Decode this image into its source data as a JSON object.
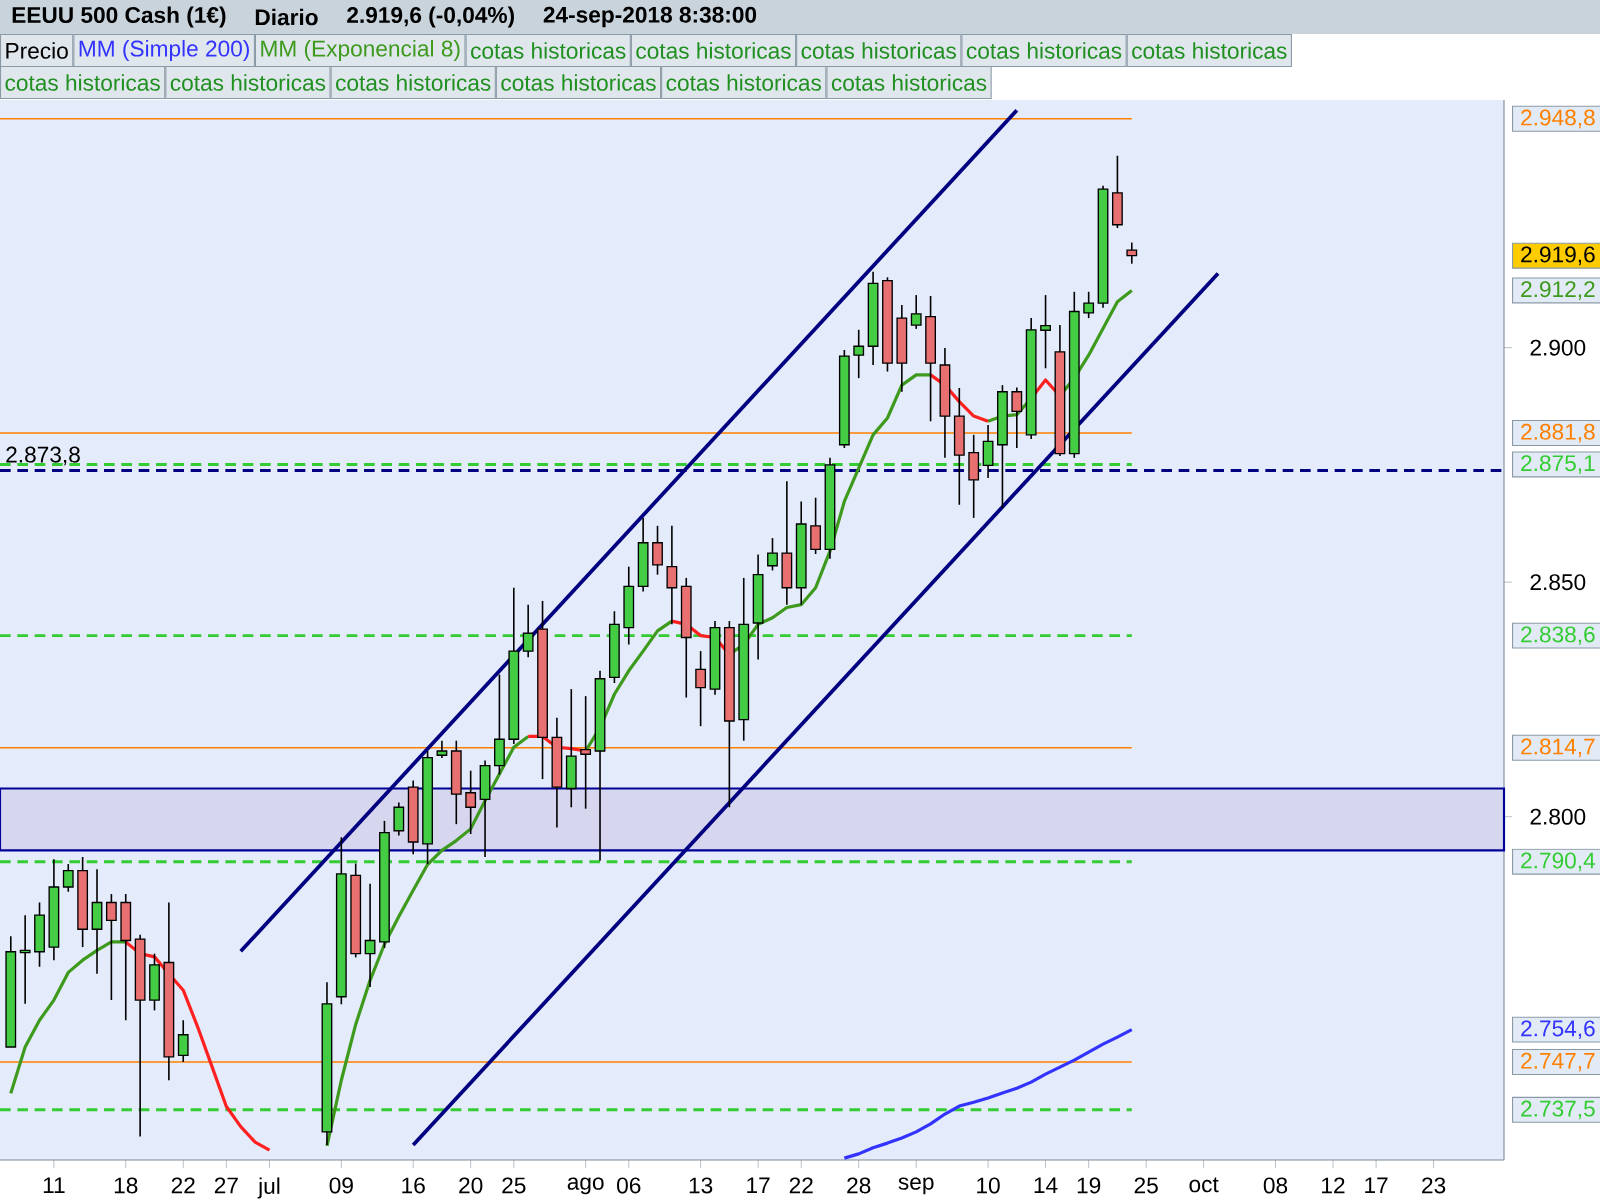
{
  "chart_data": {
    "type": "candlestick",
    "title": "EEUU 500 Cash (1€)",
    "subtitle": "Diario",
    "categories": [
      null,
      null,
      null,
      "11",
      null,
      null,
      null,
      null,
      "18",
      null,
      null,
      null,
      "22",
      null,
      null,
      "27",
      null,
      null,
      "jul",
      null,
      null,
      null,
      null,
      "09",
      null,
      null,
      null,
      null,
      "16",
      null,
      null,
      null,
      "20",
      null,
      null,
      "25",
      null,
      null,
      null,
      null,
      "ago",
      null,
      null,
      "06",
      null,
      null,
      null,
      null,
      "13",
      null,
      null,
      null,
      "17",
      null,
      null,
      "22",
      null,
      null,
      null,
      "28",
      null,
      null,
      null,
      "sep",
      null,
      null,
      null,
      null,
      "10",
      null,
      null,
      null,
      "14",
      null,
      null,
      "19",
      null,
      null,
      null,
      "25",
      null,
      null,
      null,
      "oct",
      null,
      null,
      null,
      null,
      "08",
      null,
      null,
      null,
      "12",
      null,
      null,
      "17",
      null,
      null,
      null,
      "23",
      null,
      null,
      null,
      null
    ],
    "series": [
      {
        "name": "Precio",
        "type": "candlestick",
        "ohlc": [
          [
            2750.9,
            2774.5,
            2750.9,
            2771.2
          ],
          [
            2771.0,
            2779.0,
            2760.1,
            2771.5
          ],
          [
            2771.2,
            2781.7,
            2768.0,
            2779.0
          ],
          [
            2772.2,
            2790.9,
            2769.4,
            2785.0
          ],
          [
            2785.0,
            2789.9,
            2784.0,
            2788.5
          ],
          [
            2788.5,
            2791.4,
            2772.2,
            2776.0
          ],
          [
            2776.0,
            2788.8,
            2766.5,
            2781.7
          ],
          [
            2781.7,
            2783.5,
            2760.9,
            2777.9
          ],
          [
            2781.7,
            2783.5,
            2756.6,
            2773.6
          ],
          [
            2773.9,
            2774.8,
            2731.8,
            2760.9
          ],
          [
            2760.9,
            2770.8,
            2758.7,
            2768.4
          ],
          [
            2768.9,
            2781.7,
            2743.8,
            2748.8
          ],
          [
            2749.1,
            2756.6,
            2747.7,
            2753.5
          ],
          null,
          null,
          null,
          null,
          null,
          null,
          null,
          null,
          null,
          [
            2732.8,
            2764.7,
            2730.0,
            2760.1
          ],
          [
            2761.6,
            2795.6,
            2760.0,
            2787.8
          ],
          [
            2787.5,
            2790.0,
            2770.0,
            2770.8
          ],
          [
            2770.8,
            2785.7,
            2763.7,
            2773.6
          ],
          [
            2773.3,
            2799.1,
            2772.0,
            2796.6
          ],
          [
            2797.0,
            2803.0,
            2796.0,
            2802.0
          ],
          [
            2806.3,
            2807.7,
            2792.0,
            2794.6
          ],
          [
            2794.2,
            2814.0,
            2789.9,
            2812.6
          ],
          [
            2813.1,
            2816.2,
            2812.5,
            2814.0
          ],
          [
            2814.0,
            2816.2,
            2798.4,
            2804.8
          ],
          [
            2805.1,
            2809.8,
            2796.3,
            2802.0
          ],
          [
            2803.7,
            2812.0,
            2791.4,
            2810.9
          ],
          [
            2810.9,
            2830.3,
            2809.0,
            2816.5
          ],
          [
            2816.5,
            2848.8,
            2815.5,
            2835.3
          ],
          [
            2835.3,
            2845.2,
            2834.0,
            2839.1
          ],
          [
            2840.0,
            2846.0,
            2808.0,
            2816.9
          ],
          [
            2816.9,
            2821.1,
            2797.7,
            2806.3
          ],
          [
            2806.0,
            2827.2,
            2802.0,
            2812.9
          ],
          [
            2814.3,
            2825.7,
            2801.7,
            2813.3
          ],
          [
            2814.0,
            2831.1,
            2790.6,
            2829.4
          ],
          [
            2829.7,
            2843.8,
            2828.5,
            2841.0
          ],
          [
            2840.3,
            2853.3,
            2836.7,
            2849.1
          ],
          [
            2849.1,
            2863.7,
            2848.0,
            2858.4
          ],
          [
            2858.4,
            2862.0,
            2851.6,
            2853.7
          ],
          [
            2853.3,
            2862.0,
            2841.0,
            2848.8
          ],
          [
            2849.1,
            2850.9,
            2825.4,
            2838.2
          ],
          [
            2831.4,
            2835.3,
            2819.3,
            2827.5
          ],
          [
            2827.2,
            2841.7,
            2826.0,
            2840.3
          ],
          [
            2840.3,
            2841.7,
            2802.0,
            2820.4
          ],
          [
            2820.7,
            2850.9,
            2816.2,
            2841.0
          ],
          [
            2841.3,
            2855.9,
            2833.5,
            2851.6
          ],
          [
            2853.5,
            2859.4,
            2852.5,
            2856.2
          ],
          [
            2856.2,
            2871.5,
            2845.2,
            2848.8
          ],
          [
            2848.8,
            2867.2,
            2845.2,
            2862.4
          ],
          [
            2862.0,
            2868.0,
            2856.0,
            2857.0
          ],
          [
            2857.0,
            2876.5,
            2855.0,
            2875.0
          ],
          [
            2879.3,
            2899.5,
            2878.6,
            2898.2
          ],
          [
            2898.4,
            2903.8,
            2893.5,
            2900.3
          ],
          [
            2900.3,
            2916.2,
            2896.3,
            2913.7
          ],
          [
            2914.3,
            2915.0,
            2894.9,
            2896.7
          ],
          [
            2906.3,
            2909.1,
            2890.6,
            2896.7
          ],
          [
            2904.8,
            2911.2,
            2904.0,
            2907.2
          ],
          [
            2906.6,
            2911.0,
            2884.3,
            2896.7
          ],
          [
            2896.3,
            2899.9,
            2876.5,
            2885.4
          ],
          [
            2885.4,
            2891.4,
            2866.5,
            2877.1
          ],
          [
            2877.6,
            2881.4,
            2863.7,
            2871.8
          ],
          [
            2874.9,
            2883.5,
            2872.2,
            2880.0
          ],
          [
            2879.3,
            2892.0,
            2865.8,
            2890.6
          ],
          [
            2890.6,
            2891.5,
            2878.6,
            2886.4
          ],
          [
            2881.4,
            2906.3,
            2880.5,
            2903.8
          ],
          [
            2903.7,
            2911.2,
            2895.6,
            2904.7
          ],
          [
            2899.1,
            2904.8,
            2876.9,
            2877.4
          ],
          [
            2877.4,
            2911.9,
            2876.5,
            2907.7
          ],
          [
            2907.4,
            2911.9,
            2906.3,
            2909.5
          ],
          [
            2909.5,
            2934.5,
            2908.5,
            2933.8
          ],
          [
            2933.0,
            2940.9,
            2925.5,
            2926.2
          ],
          [
            2920.8,
            2922.4,
            2917.9,
            2919.6
          ],
          null,
          null,
          null,
          null,
          null,
          null,
          null,
          null,
          null,
          null,
          null,
          null,
          null,
          null,
          null,
          null,
          null,
          null,
          null,
          null,
          null,
          null,
          null,
          null,
          null
        ]
      },
      {
        "name": "MM (Simple 200)",
        "type": "line",
        "color": "#3333ff",
        "values": [
          null,
          null,
          null,
          null,
          null,
          null,
          null,
          null,
          null,
          null,
          null,
          null,
          null,
          null,
          null,
          null,
          null,
          null,
          null,
          null,
          null,
          null,
          null,
          null,
          null,
          null,
          null,
          null,
          null,
          null,
          null,
          null,
          null,
          null,
          null,
          null,
          null,
          null,
          null,
          null,
          null,
          null,
          null,
          null,
          null,
          null,
          null,
          null,
          null,
          null,
          null,
          null,
          null,
          null,
          null,
          null,
          null,
          null,
          2727.2,
          2728.1,
          2729.4,
          2730.4,
          2731.5,
          2732.8,
          2734.5,
          2736.6,
          2738.3,
          2739.1,
          2740.0,
          2741.1,
          2742.1,
          2743.4,
          2745.1,
          2746.6,
          2748.1,
          2749.8,
          2751.5,
          2753.0,
          2754.6,
          null,
          null,
          null,
          null,
          null,
          null,
          null,
          null,
          null,
          null,
          null,
          null,
          null,
          null,
          null,
          null,
          null,
          null,
          null,
          null,
          null,
          null,
          null,
          null,
          null
        ]
      },
      {
        "name": "MM (Exponencial 8)",
        "type": "line",
        "color": "#3d9a1c",
        "values": [
          2741.0,
          2750.9,
          2756.6,
          2760.9,
          2766.8,
          2769.4,
          2771.5,
          2773.3,
          2773.3,
          null,
          null,
          null,
          null,
          null,
          null,
          null,
          null,
          null,
          null,
          null,
          null,
          null,
          2729.8,
          2743.8,
          2755.7,
          2765.1,
          2772.8,
          2778.7,
          2784.3,
          2789.8,
          2792.8,
          2794.9,
          2797.4,
          2803.4,
          2809.1,
          2814.8,
          2817.1,
          null,
          null,
          null,
          2814.0,
          2819.0,
          2826.1,
          2831.1,
          2835.3,
          2839.6,
          2841.7,
          null,
          null,
          null,
          2834.6,
          2836.7,
          2841.0,
          2842.4,
          2844.6,
          2845.2,
          2848.8,
          2856.6,
          2867.2,
          2874.3,
          2881.4,
          2885.0,
          2892.0,
          2894.2,
          2894.2,
          null,
          null,
          null,
          2884.3,
          2885.4,
          2885.7,
          2889.2,
          null,
          2889.7,
          2893.5,
          2898.4,
          2904.1,
          2909.8,
          2912.2,
          null,
          null,
          null,
          null,
          null,
          null,
          null,
          null,
          null,
          null,
          null,
          null,
          null,
          null,
          null,
          null,
          null,
          null,
          null,
          null,
          null,
          null,
          null,
          null,
          null
        ]
      },
      {
        "type": "line",
        "color": "#ff2020",
        "values": [
          null,
          null,
          null,
          null,
          null,
          null,
          null,
          null,
          2773.3,
          2770.8,
          2770.1,
          2766.5,
          2763.0,
          2755.2,
          2746.7,
          2738.2,
          2733.9,
          2730.6,
          2728.9,
          null,
          null,
          null,
          null,
          null,
          null,
          null,
          null,
          null,
          null,
          null,
          null,
          null,
          null,
          null,
          null,
          null,
          2817.1,
          2817.1,
          2814.8,
          2814.5,
          2814.0,
          null,
          null,
          null,
          null,
          null,
          2841.7,
          2841.0,
          2838.6,
          2838.2,
          2834.6,
          null,
          null,
          null,
          null,
          null,
          null,
          null,
          null,
          null,
          null,
          null,
          null,
          null,
          2894.2,
          2892.0,
          2888.5,
          2885.4,
          2884.3,
          null,
          null,
          2889.2,
          2893.1,
          2889.7,
          null,
          null,
          null,
          null,
          null,
          null,
          null,
          null,
          null,
          null,
          null,
          null,
          null,
          null,
          null,
          null,
          null,
          null,
          null,
          null,
          null,
          null,
          null,
          null,
          null,
          null,
          null,
          null,
          null,
          null
        ]
      },
      {
        "type": "line",
        "color": "#000080",
        "values": [
          null,
          null,
          null,
          null,
          null,
          null,
          null,
          null,
          null,
          null,
          null,
          null,
          null,
          null,
          null,
          null,
          2771.3,
          null,
          null,
          null,
          null,
          null,
          null,
          null,
          null,
          null,
          null,
          null,
          null,
          null,
          null,
          null,
          null,
          null,
          null,
          null,
          null,
          null,
          null,
          null,
          null,
          null,
          null,
          null,
          null,
          null,
          null,
          null,
          null,
          null,
          null,
          null,
          null,
          null,
          null,
          null,
          null,
          null,
          null,
          null,
          null,
          null,
          null,
          null,
          null,
          null,
          null,
          null,
          null,
          null,
          2950.6,
          null,
          null,
          null,
          null,
          null,
          null,
          null,
          null,
          null,
          null,
          null,
          null,
          null,
          null,
          null,
          null,
          null,
          null,
          null,
          null,
          null,
          null,
          null,
          null,
          null,
          null,
          null,
          null,
          null,
          null,
          null,
          null,
          null
        ]
      },
      {
        "type": "line",
        "color": "#000080",
        "values": [
          null,
          null,
          null,
          null,
          null,
          null,
          null,
          null,
          null,
          null,
          null,
          null,
          null,
          null,
          null,
          null,
          null,
          null,
          null,
          null,
          null,
          null,
          null,
          null,
          null,
          null,
          null,
          null,
          2730.0,
          null,
          null,
          null,
          null,
          null,
          null,
          null,
          null,
          null,
          null,
          null,
          null,
          null,
          null,
          null,
          null,
          null,
          null,
          null,
          null,
          null,
          null,
          null,
          null,
          null,
          null,
          null,
          null,
          null,
          null,
          null,
          null,
          null,
          null,
          null,
          null,
          null,
          null,
          null,
          null,
          null,
          null,
          null,
          null,
          null,
          null,
          null,
          null,
          null,
          null,
          null,
          null,
          null,
          null,
          null,
          2915.8,
          null,
          null,
          null,
          null,
          null,
          null,
          null,
          null,
          null,
          null,
          null,
          null,
          null,
          null,
          null,
          null,
          null,
          null,
          null
        ]
      }
    ],
    "ylim": [
      2726.8,
      2952.8
    ],
    "yticks": [
      {
        "value": 2800,
        "label": "2.800"
      },
      {
        "value": 2850,
        "label": "2.850"
      },
      {
        "value": 2900,
        "label": "2.900"
      }
    ],
    "ref_lines": [
      {
        "axis": "y",
        "value": 2948.8,
        "label": "2.948,8",
        "color": "#ff8000"
      },
      {
        "axis": "y",
        "value": 2881.8,
        "label": "2.881,8",
        "color": "#ff8000"
      },
      {
        "axis": "y",
        "value": 2875.1,
        "label": "2.875,1",
        "color": "#33cc33",
        "line_style": "dashed"
      },
      {
        "axis": "y",
        "value": 2873.8,
        "label": "2.873,8",
        "color": "#000080",
        "line_style": "dashed"
      },
      {
        "axis": "y",
        "value": 2838.6,
        "label": "2.838,6",
        "color": "#33cc33",
        "line_style": "dashed"
      },
      {
        "axis": "y",
        "value": 2814.7,
        "label": "2.814,7",
        "color": "#ff8000"
      },
      {
        "axis": "y",
        "value": 2790.4,
        "label": "2.790,4",
        "color": "#33cc33",
        "line_style": "dashed"
      },
      {
        "axis": "y",
        "value": 2747.7,
        "label": "2.747,7",
        "color": "#ff8000"
      },
      {
        "axis": "y",
        "value": 2737.5,
        "label": "2.737,5",
        "color": "#33cc33",
        "line_style": "dashed"
      }
    ],
    "bands": [
      {
        "axis": "y",
        "from": 2792.8,
        "to": 2806.0,
        "color": "#000099"
      }
    ],
    "annotations": [
      "2.919,6 (-0,04%)",
      "24-sep-2018 8:38:00",
      "cotas historicas",
      "cotas historicas",
      "cotas historicas",
      "cotas historicas",
      "cotas historicas",
      "cotas historicas",
      "cotas historicas",
      "cotas historicas",
      "cotas historicas",
      "cotas historicas",
      "cotas historicas",
      "2.919,6",
      "2.754,6",
      "2.912,2"
    ],
    "legend": "top"
  }
}
